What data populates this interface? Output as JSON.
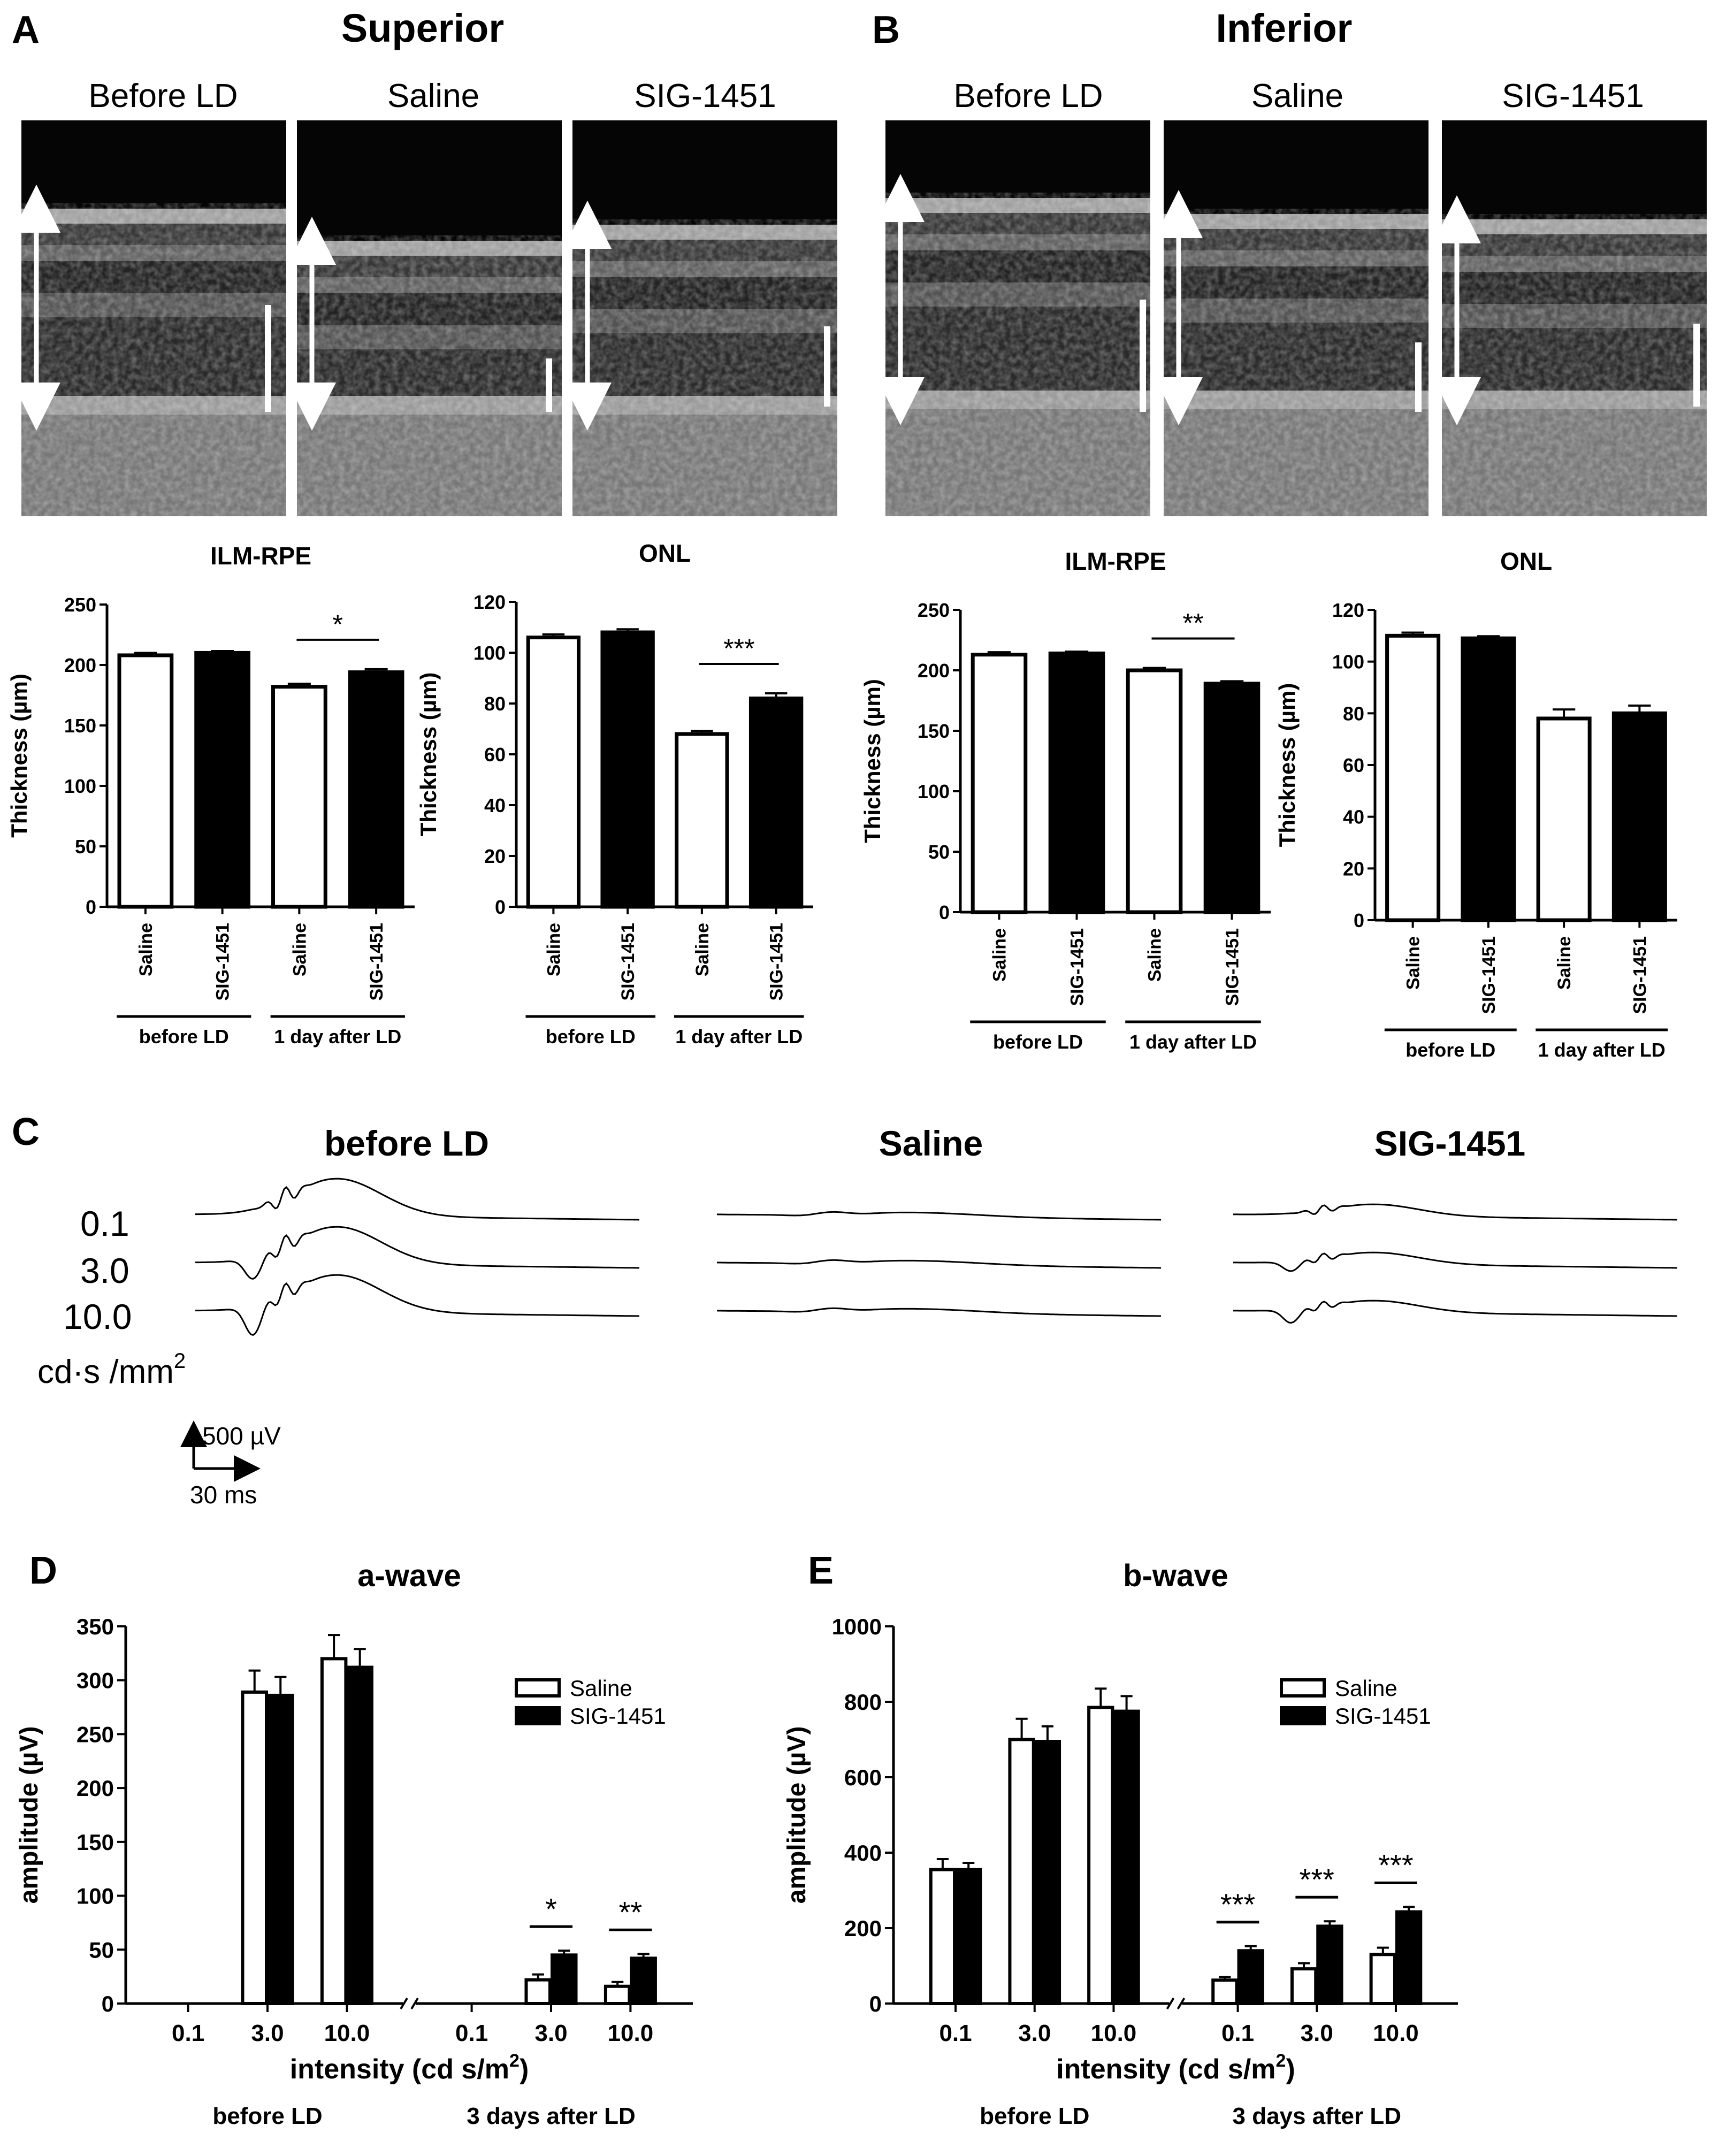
{
  "panels": {
    "A": {
      "letter": "A",
      "title": "Superior",
      "image_labels": [
        "Before LD",
        "Saline",
        "SIG-1451"
      ],
      "charts": [
        {
          "type": "bar",
          "title": "ILM-RPE",
          "ylabel": "Thickness (µm)",
          "ylim": [
            0,
            250
          ],
          "yticks": [
            0,
            50,
            100,
            150,
            200,
            250
          ],
          "categories": [
            "Saline",
            "SIG-1451",
            "Saline",
            "SIG-1451"
          ],
          "values": [
            208,
            210,
            182,
            194
          ],
          "errors": [
            2,
            1.5,
            2.5,
            2.5
          ],
          "fill": [
            "white",
            "black",
            "white",
            "black"
          ],
          "groups": [
            {
              "label": "before LD",
              "from": 0,
              "to": 1
            },
            {
              "label": "1 day after LD",
              "from": 2,
              "to": 3
            }
          ],
          "significance": [
            {
              "from": 2,
              "to": 3,
              "label": "*"
            }
          ]
        },
        {
          "type": "bar",
          "title": "ONL",
          "ylabel": "Thickness (µm)",
          "ylim": [
            0,
            120
          ],
          "yticks": [
            0,
            20,
            40,
            60,
            80,
            100,
            120
          ],
          "categories": [
            "Saline",
            "SIG-1451",
            "Saline",
            "SIG-1451"
          ],
          "values": [
            106,
            108,
            68,
            82
          ],
          "errors": [
            1.2,
            1.2,
            1.2,
            2
          ],
          "fill": [
            "white",
            "black",
            "white",
            "black"
          ],
          "groups": [
            {
              "label": "before LD",
              "from": 0,
              "to": 1
            },
            {
              "label": "1 day after LD",
              "from": 2,
              "to": 3
            }
          ],
          "significance": [
            {
              "from": 2,
              "to": 3,
              "label": "***"
            }
          ]
        }
      ]
    },
    "B": {
      "letter": "B",
      "title": "Inferior",
      "image_labels": [
        "Before LD",
        "Saline",
        "SIG-1451"
      ],
      "charts": [
        {
          "type": "bar",
          "title": "ILM-RPE",
          "ylabel": "Thickness (µm)",
          "ylim": [
            0,
            250
          ],
          "yticks": [
            0,
            50,
            100,
            150,
            200,
            250
          ],
          "categories": [
            "Saline",
            "SIG-1451",
            "Saline",
            "SIG-1451"
          ],
          "values": [
            213,
            214,
            200,
            189
          ],
          "errors": [
            2,
            1.5,
            2,
            2
          ],
          "fill": [
            "white",
            "black",
            "white",
            "black"
          ],
          "groups": [
            {
              "label": "before LD",
              "from": 0,
              "to": 1
            },
            {
              "label": "1 day after LD",
              "from": 2,
              "to": 3
            }
          ],
          "significance": [
            {
              "from": 2,
              "to": 3,
              "label": "**"
            }
          ]
        },
        {
          "type": "bar",
          "title": "ONL",
          "ylabel": "Thickness (µm)",
          "ylim": [
            0,
            120
          ],
          "yticks": [
            0,
            20,
            40,
            60,
            80,
            100,
            120
          ],
          "categories": [
            "Saline",
            "SIG-1451",
            "Saline",
            "SIG-1451"
          ],
          "values": [
            110,
            109,
            78,
            80
          ],
          "errors": [
            1.2,
            0.8,
            3.5,
            3
          ],
          "fill": [
            "white",
            "black",
            "white",
            "black"
          ],
          "groups": [
            {
              "label": "before LD",
              "from": 0,
              "to": 1
            },
            {
              "label": "1 day after LD",
              "from": 2,
              "to": 3
            }
          ],
          "significance": []
        }
      ]
    },
    "C": {
      "letter": "C",
      "titles": [
        "before LD",
        "Saline",
        "SIG-1451"
      ],
      "intensity_labels": [
        "0.1",
        "3.0",
        "10.0"
      ],
      "unit_label": "cd·s /mm",
      "unit_sup": "2",
      "scale_y": "500 µV",
      "scale_x": "30 ms"
    },
    "D": {
      "letter": "D",
      "chart_data": {
        "type": "bar",
        "title": "a-wave",
        "xlabel": "intensity (cd s/m",
        "xlabel_sup": "2",
        "xlabel_end": ")",
        "ylabel": "amplitude (µV)",
        "ylim": [
          0,
          350
        ],
        "yticks": [
          0,
          50,
          100,
          150,
          200,
          250,
          300,
          350
        ],
        "categories": [
          "0.1",
          "3.0",
          "10.0",
          "0.1",
          "3.0",
          "10.0"
        ],
        "series": [
          {
            "name": "Saline",
            "values": [
              0,
              289,
              320,
              0,
              22,
              16
            ],
            "errors": [
              0,
              20,
              22,
              0,
              5,
              4
            ]
          },
          {
            "name": "SIG-1451",
            "values": [
              0,
              286,
              312,
              0,
              45,
              42
            ],
            "errors": [
              0,
              17,
              17,
              0,
              4,
              4
            ]
          }
        ],
        "groups": [
          {
            "label": "before LD",
            "from": 0,
            "to": 2
          },
          {
            "label": "3 days after LD",
            "from": 3,
            "to": 5
          }
        ],
        "significance": [
          {
            "category": 4,
            "label": "*"
          },
          {
            "category": 5,
            "label": "**"
          }
        ],
        "legend": "top-right"
      }
    },
    "E": {
      "letter": "E",
      "chart_data": {
        "type": "bar",
        "title": "b-wave",
        "xlabel": "intensity (cd s/m",
        "xlabel_sup": "2",
        "xlabel_end": ")",
        "ylabel": "amplitude (µV)",
        "ylim": [
          0,
          1000
        ],
        "yticks": [
          0,
          200,
          400,
          600,
          800,
          1000
        ],
        "categories": [
          "0.1",
          "3.0",
          "10.0",
          "0.1",
          "3.0",
          "10.0"
        ],
        "series": [
          {
            "name": "Saline",
            "values": [
              355,
              700,
              785,
              62,
              92,
              130
            ],
            "errors": [
              28,
              55,
              50,
              8,
              15,
              18
            ]
          },
          {
            "name": "SIG-1451",
            "values": [
              355,
              695,
              775,
              140,
              205,
              243
            ],
            "errors": [
              18,
              40,
              40,
              12,
              13,
              13
            ]
          }
        ],
        "groups": [
          {
            "label": "before LD",
            "from": 0,
            "to": 2
          },
          {
            "label": "3 days after LD",
            "from": 3,
            "to": 5
          }
        ],
        "significance": [
          {
            "category": 3,
            "label": "***"
          },
          {
            "category": 4,
            "label": "***"
          },
          {
            "category": 5,
            "label": "***"
          }
        ],
        "legend": "top-right"
      }
    }
  }
}
